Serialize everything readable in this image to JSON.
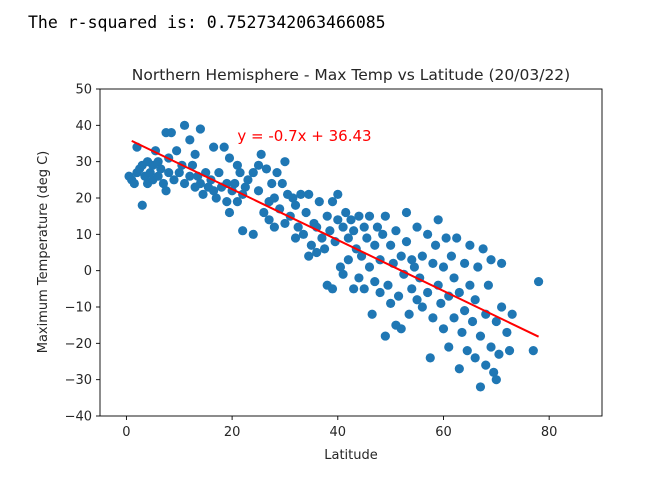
{
  "output": {
    "r_squared_text": "The r-squared is: 0.7527342063466085"
  },
  "chart_data": {
    "type": "scatter",
    "title": "Northern Hemisphere - Max Temp vs Latitude (20/03/22)",
    "xlabel": "Latitude",
    "ylabel": "Maximum Temperature (deg C)",
    "xlim": [
      -5,
      90
    ],
    "ylim": [
      -40,
      50
    ],
    "xticks": [
      0,
      20,
      40,
      60,
      80
    ],
    "yticks": [
      -40,
      -30,
      -20,
      -10,
      0,
      10,
      20,
      30,
      40,
      50
    ],
    "grid": false,
    "point_color": "#1f77b4",
    "line_color": "#ff0000",
    "regression": {
      "slope": -0.7,
      "intercept": 36.43,
      "x_range": [
        1,
        78
      ],
      "equation_label": "y = -0.7x + 36.43",
      "label_position": [
        21,
        37
      ]
    },
    "points": [
      [
        0.5,
        26
      ],
      [
        1,
        25
      ],
      [
        1.5,
        24
      ],
      [
        2,
        27
      ],
      [
        2,
        34
      ],
      [
        2.5,
        28
      ],
      [
        3,
        18
      ],
      [
        3,
        29
      ],
      [
        3.5,
        26
      ],
      [
        4,
        24
      ],
      [
        4,
        30
      ],
      [
        4.5,
        27
      ],
      [
        5,
        25
      ],
      [
        5,
        29
      ],
      [
        5.5,
        33
      ],
      [
        6,
        26
      ],
      [
        6,
        30
      ],
      [
        6.5,
        28
      ],
      [
        7,
        24
      ],
      [
        7.5,
        22
      ],
      [
        7.5,
        38
      ],
      [
        8,
        27
      ],
      [
        8,
        31
      ],
      [
        8.5,
        38
      ],
      [
        9,
        25
      ],
      [
        9.5,
        33
      ],
      [
        10,
        27
      ],
      [
        10.5,
        29
      ],
      [
        11,
        24
      ],
      [
        11,
        40
      ],
      [
        12,
        26
      ],
      [
        12,
        36
      ],
      [
        12.5,
        29
      ],
      [
        13,
        23
      ],
      [
        13,
        32
      ],
      [
        13.5,
        26
      ],
      [
        14,
        39
      ],
      [
        14,
        24
      ],
      [
        14.5,
        21
      ],
      [
        15,
        27
      ],
      [
        15.5,
        23
      ],
      [
        16,
        25
      ],
      [
        16.5,
        22
      ],
      [
        16.5,
        34
      ],
      [
        17,
        20
      ],
      [
        17.5,
        27
      ],
      [
        18,
        23
      ],
      [
        18.5,
        34
      ],
      [
        19,
        19
      ],
      [
        19,
        24
      ],
      [
        19.5,
        16
      ],
      [
        19.5,
        31
      ],
      [
        20,
        22
      ],
      [
        20.5,
        24
      ],
      [
        21,
        19
      ],
      [
        21,
        29
      ],
      [
        21.5,
        27
      ],
      [
        22,
        21
      ],
      [
        22,
        11
      ],
      [
        22.5,
        23
      ],
      [
        23,
        25
      ],
      [
        24,
        10
      ],
      [
        24,
        27
      ],
      [
        25,
        22
      ],
      [
        25,
        29
      ],
      [
        25.5,
        32
      ],
      [
        26,
        16
      ],
      [
        26.5,
        28
      ],
      [
        27,
        14
      ],
      [
        27,
        19
      ],
      [
        27.5,
        24
      ],
      [
        28,
        12
      ],
      [
        28,
        20
      ],
      [
        28.5,
        27
      ],
      [
        29,
        17
      ],
      [
        29.5,
        24
      ],
      [
        30,
        13
      ],
      [
        30,
        30
      ],
      [
        30.5,
        21
      ],
      [
        31,
        15
      ],
      [
        31.5,
        20
      ],
      [
        32,
        9
      ],
      [
        32,
        18
      ],
      [
        32.5,
        12
      ],
      [
        33,
        21
      ],
      [
        33.5,
        10
      ],
      [
        34,
        16
      ],
      [
        34.5,
        4
      ],
      [
        34.5,
        21
      ],
      [
        35,
        7
      ],
      [
        35.5,
        13
      ],
      [
        36,
        5
      ],
      [
        36,
        12
      ],
      [
        36.5,
        19
      ],
      [
        37,
        9
      ],
      [
        37.5,
        6
      ],
      [
        38,
        -4
      ],
      [
        38,
        15
      ],
      [
        38.5,
        11
      ],
      [
        39,
        -5
      ],
      [
        39,
        19
      ],
      [
        39.5,
        8
      ],
      [
        40,
        14
      ],
      [
        40,
        21
      ],
      [
        40.5,
        1
      ],
      [
        41,
        12
      ],
      [
        41,
        -1
      ],
      [
        41.5,
        16
      ],
      [
        42,
        9
      ],
      [
        42,
        3
      ],
      [
        42.5,
        14
      ],
      [
        43,
        -5
      ],
      [
        43,
        11
      ],
      [
        43.5,
        6
      ],
      [
        44,
        15
      ],
      [
        44,
        -2
      ],
      [
        44.5,
        4
      ],
      [
        45,
        12
      ],
      [
        45,
        -5
      ],
      [
        45.5,
        9
      ],
      [
        46,
        1
      ],
      [
        46,
        15
      ],
      [
        46.5,
        -12
      ],
      [
        47,
        7
      ],
      [
        47,
        -3
      ],
      [
        47.5,
        12
      ],
      [
        48,
        -6
      ],
      [
        48,
        3
      ],
      [
        48.5,
        10
      ],
      [
        49,
        -18
      ],
      [
        49,
        15
      ],
      [
        49.5,
        -4
      ],
      [
        50,
        7
      ],
      [
        50,
        -9
      ],
      [
        50.5,
        2
      ],
      [
        51,
        -15
      ],
      [
        51,
        11
      ],
      [
        51.5,
        -7
      ],
      [
        52,
        4
      ],
      [
        52,
        -16
      ],
      [
        52.5,
        -1
      ],
      [
        53,
        16
      ],
      [
        53,
        8
      ],
      [
        53.5,
        -12
      ],
      [
        54,
        3
      ],
      [
        54,
        -5
      ],
      [
        54.5,
        1
      ],
      [
        55,
        -8
      ],
      [
        55,
        12
      ],
      [
        55.5,
        -2
      ],
      [
        56,
        -10
      ],
      [
        56,
        4
      ],
      [
        57,
        -6
      ],
      [
        57,
        10
      ],
      [
        57.5,
        -24
      ],
      [
        58,
        2
      ],
      [
        58,
        -13
      ],
      [
        58.5,
        7
      ],
      [
        59,
        -4
      ],
      [
        59,
        14
      ],
      [
        59.5,
        -9
      ],
      [
        60,
        1
      ],
      [
        60,
        -16
      ],
      [
        60.5,
        9
      ],
      [
        61,
        -7
      ],
      [
        61,
        -21
      ],
      [
        61.5,
        4
      ],
      [
        62,
        -13
      ],
      [
        62,
        -2
      ],
      [
        62.5,
        9
      ],
      [
        63,
        -27
      ],
      [
        63,
        -6
      ],
      [
        63.5,
        -17
      ],
      [
        64,
        2
      ],
      [
        64,
        -11
      ],
      [
        64.5,
        -22
      ],
      [
        65,
        -4
      ],
      [
        65,
        7
      ],
      [
        65.5,
        -14
      ],
      [
        66,
        -24
      ],
      [
        66,
        -8
      ],
      [
        66.5,
        1
      ],
      [
        67,
        -32
      ],
      [
        67,
        -18
      ],
      [
        67.5,
        6
      ],
      [
        68,
        -26
      ],
      [
        68,
        -12
      ],
      [
        68.5,
        -4
      ],
      [
        69,
        -21
      ],
      [
        69,
        3
      ],
      [
        69.5,
        -28
      ],
      [
        70,
        -14
      ],
      [
        70,
        -30
      ],
      [
        70.5,
        -23
      ],
      [
        71,
        -10
      ],
      [
        71,
        2
      ],
      [
        72,
        -17
      ],
      [
        72.5,
        -22
      ],
      [
        73,
        -12
      ],
      [
        77,
        -22
      ],
      [
        78,
        -3
      ]
    ]
  }
}
